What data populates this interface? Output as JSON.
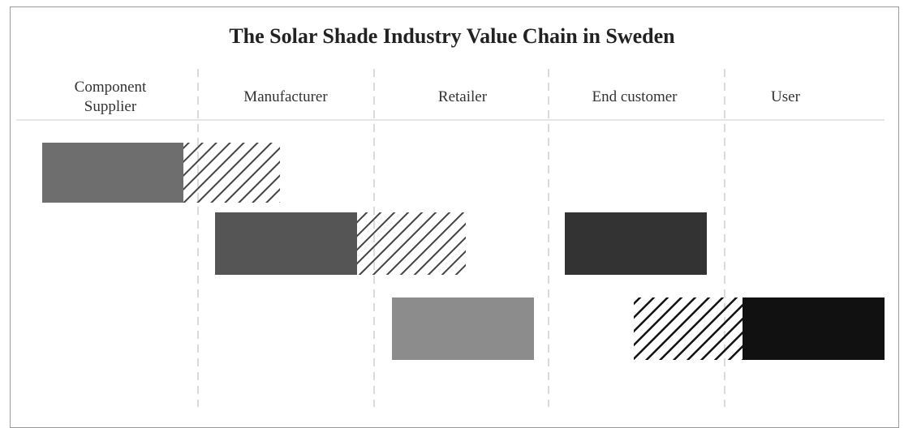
{
  "title": "The Solar Shade Industry Value Chain in Sweden",
  "columns": [
    "Component Supplier",
    "Manufacturer",
    "Retailer",
    "End customer",
    "User"
  ]
}
